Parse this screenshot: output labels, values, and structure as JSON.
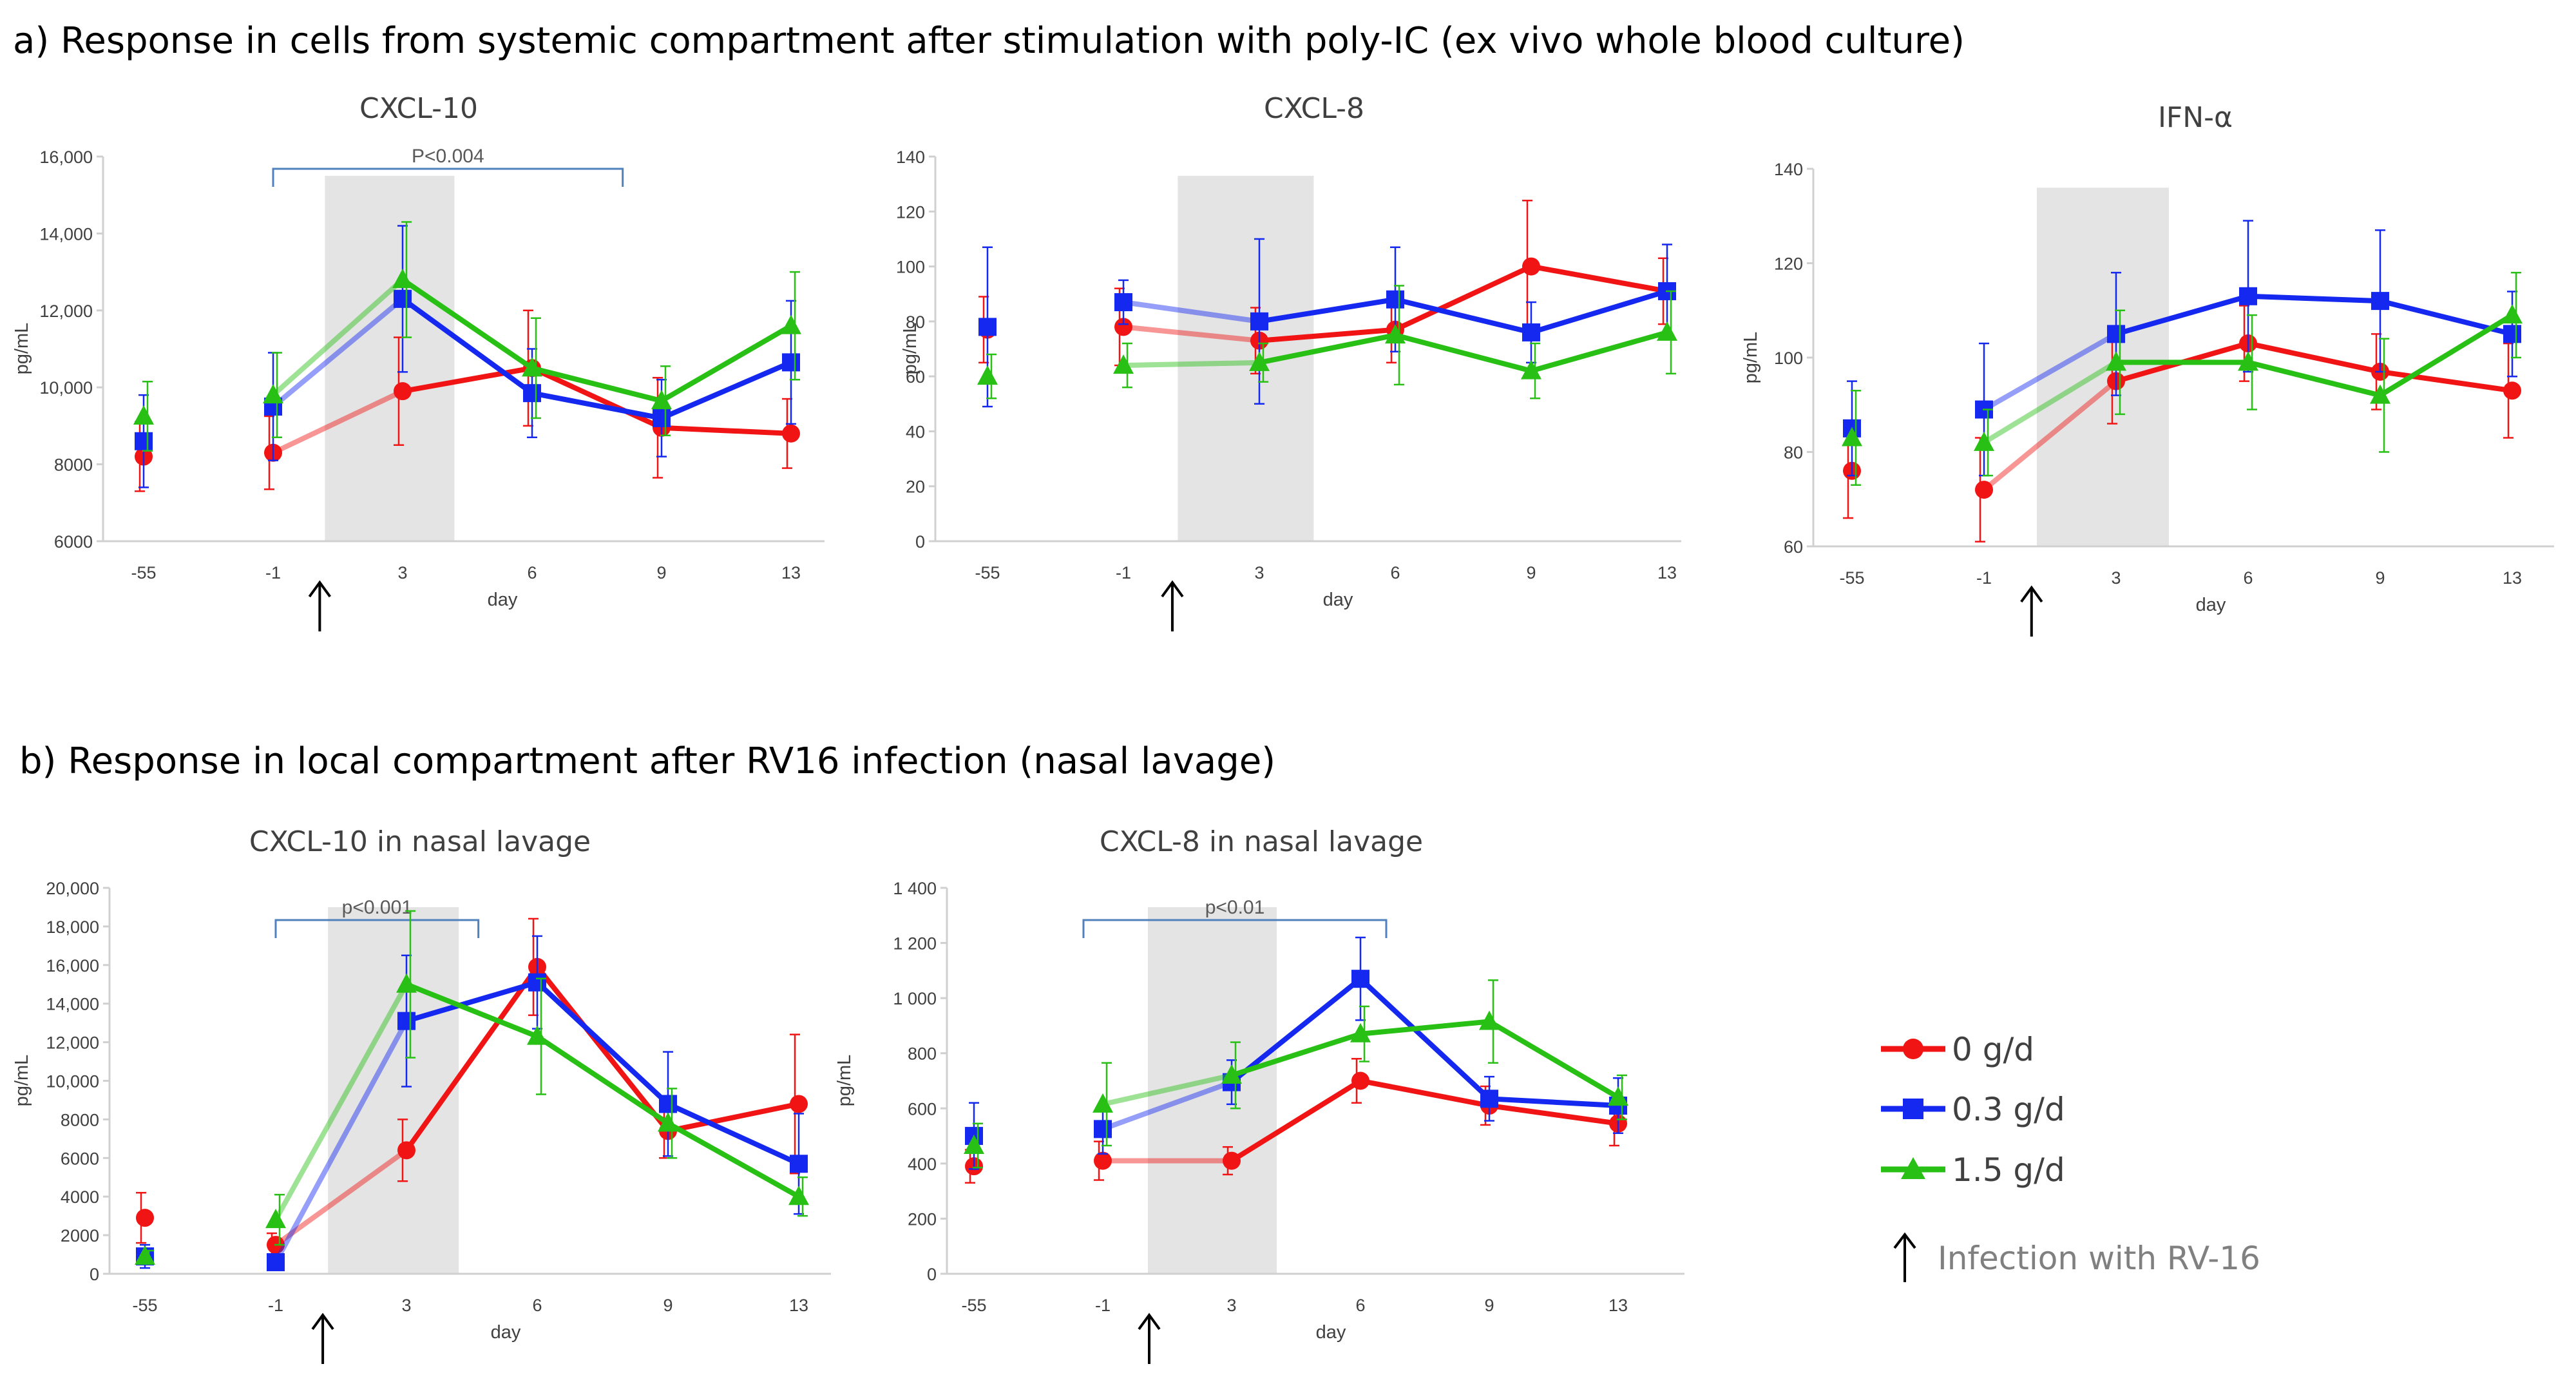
{
  "section_a_title": "a) Response in cells from systemic compartment after stimulation with poly-IC (ex vivo whole blood culture)",
  "section_b_title": "b) Response in local compartment after RV16 infection (nasal lavage)",
  "colors": {
    "s0": "#f01414",
    "s1": "#1428f0",
    "s2": "#28c014",
    "shade": "#e4e4e4",
    "bracket": "#4f81bd",
    "axis": "#d0d0d0",
    "arrow": "#000000"
  },
  "legend": {
    "items": [
      {
        "label": "0 g/d",
        "color": "#f01414",
        "marker": "circle"
      },
      {
        "label": "0.3 g/d",
        "color": "#1428f0",
        "marker": "square"
      },
      {
        "label": "1.5 g/d",
        "color": "#28c014",
        "marker": "triangle"
      }
    ],
    "infection_label": "Infection with RV-16"
  },
  "chart_data": [
    {
      "type": "line",
      "title": "CXCL-10",
      "xlabel": "day",
      "ylabel": "pg/mL",
      "categories": [
        "-55",
        "-1",
        "3",
        "6",
        "9",
        "13"
      ],
      "ylim": [
        6000,
        16000
      ],
      "yticks": [
        6000,
        8000,
        10000,
        12000,
        14000,
        16000
      ],
      "ytick_labels": [
        "6000",
        "8000",
        "10,000",
        "12,000",
        "14,000",
        "16,000"
      ],
      "shade": [
        1.4,
        2.4
      ],
      "arrow_at": 1.36,
      "pvalue": {
        "text": "P<0.004",
        "from": 1,
        "to": 3.7
      },
      "series": [
        {
          "name": "0 g/d",
          "values": [
            8200,
            8300,
            9900,
            10500,
            8950,
            8800
          ],
          "errors": [
            900,
            950,
            1400,
            1500,
            1300,
            900
          ]
        },
        {
          "name": "0.3 g/d",
          "values": [
            8600,
            9500,
            12300,
            9850,
            9200,
            10650
          ],
          "errors": [
            1200,
            1400,
            1900,
            1150,
            1000,
            1600
          ]
        },
        {
          "name": "1.5 g/d",
          "values": [
            9250,
            9800,
            12800,
            10500,
            9650,
            11600
          ],
          "errors": [
            900,
            1100,
            1500,
            1300,
            900,
            1400
          ]
        }
      ]
    },
    {
      "type": "line",
      "title": "CXCL-8",
      "xlabel": "day",
      "ylabel": "pg/mL",
      "categories": [
        "-55",
        "-1",
        "3",
        "6",
        "9",
        "13"
      ],
      "ylim": [
        0,
        140
      ],
      "yticks": [
        0,
        20,
        40,
        60,
        80,
        100,
        120,
        140
      ],
      "ytick_labels": [
        "0",
        "20",
        "40",
        "60",
        "80",
        "100",
        "120",
        "140"
      ],
      "shade": [
        1.4,
        2.4
      ],
      "arrow_at": 1.36,
      "series": [
        {
          "name": "0 g/d",
          "values": [
            77,
            78,
            73,
            77,
            100,
            91
          ],
          "errors": [
            12,
            14,
            12,
            12,
            24,
            12
          ]
        },
        {
          "name": "0.3 g/d",
          "values": [
            78,
            87,
            80,
            88,
            76,
            91
          ],
          "errors": [
            29,
            8,
            30,
            19,
            11,
            17
          ]
        },
        {
          "name": "1.5 g/d",
          "values": [
            60,
            64,
            65,
            75,
            62,
            76
          ],
          "errors": [
            8,
            8,
            7,
            18,
            10,
            15
          ]
        }
      ]
    },
    {
      "type": "line",
      "title": "IFN-α",
      "xlabel": "day",
      "ylabel": "pg/mL",
      "categories": [
        "-55",
        "-1",
        "3",
        "6",
        "9",
        "13"
      ],
      "ylim": [
        60,
        140
      ],
      "yticks": [
        60,
        80,
        100,
        120,
        140
      ],
      "ytick_labels": [
        "60",
        "80",
        "100",
        "120",
        "140"
      ],
      "shade": [
        1.4,
        2.4
      ],
      "arrow_at": 1.36,
      "series": [
        {
          "name": "0 g/d",
          "values": [
            76,
            72,
            95,
            103,
            97,
            93
          ],
          "errors": [
            10,
            11,
            9,
            8,
            8,
            10
          ]
        },
        {
          "name": "0.3 g/d",
          "values": [
            85,
            89,
            105,
            113,
            112,
            105
          ],
          "errors": [
            10,
            14,
            13,
            16,
            15,
            9
          ]
        },
        {
          "name": "1.5 g/d",
          "values": [
            83,
            82,
            99,
            99,
            92,
            109
          ],
          "errors": [
            10,
            7,
            11,
            10,
            12,
            9
          ]
        }
      ]
    },
    {
      "type": "line",
      "title": "CXCL-10 in nasal lavage",
      "xlabel": "day",
      "ylabel": "pg/mL",
      "categories": [
        "-55",
        "-1",
        "3",
        "6",
        "9",
        "13"
      ],
      "ylim": [
        0,
        20000
      ],
      "yticks": [
        0,
        2000,
        4000,
        6000,
        8000,
        10000,
        12000,
        14000,
        16000,
        18000,
        20000
      ],
      "ytick_labels": [
        "0",
        "2000",
        "4000",
        "6000",
        "8000",
        "10,000",
        "12,000",
        "14,000",
        "16,000",
        "18,000",
        "20,000"
      ],
      "shade": [
        1.4,
        2.4
      ],
      "arrow_at": 1.36,
      "pvalue": {
        "text": "p<0.001",
        "from": 1,
        "to": 2.55
      },
      "series": [
        {
          "name": "0 g/d",
          "values": [
            2900,
            1500,
            6400,
            15900,
            7400,
            8800
          ],
          "errors": [
            1300,
            600,
            1600,
            2500,
            1400,
            3600
          ]
        },
        {
          "name": "0.3 g/d",
          "values": [
            900,
            600,
            13100,
            15100,
            8800,
            5700
          ],
          "errors": [
            600,
            300,
            3400,
            2400,
            2700,
            2600
          ]
        },
        {
          "name": "1.5 g/d",
          "values": [
            900,
            2800,
            15000,
            12300,
            7800,
            4000
          ],
          "errors": [
            300,
            1300,
            3800,
            3000,
            1800,
            1000
          ]
        }
      ]
    },
    {
      "type": "line",
      "title": "CXCL-8 in nasal lavage",
      "xlabel": "day",
      "ylabel": "pg/mL",
      "categories": [
        "-55",
        "-1",
        "3",
        "6",
        "9",
        "13"
      ],
      "ylim": [
        0,
        1400
      ],
      "yticks": [
        0,
        200,
        400,
        600,
        800,
        1000,
        1200,
        1400
      ],
      "ytick_labels": [
        "0",
        "200",
        "400",
        "600",
        "800",
        "1 000",
        "1 200",
        "1 400"
      ],
      "shade": [
        1.35,
        2.35
      ],
      "arrow_at": 1.36,
      "pvalue": {
        "text": "p<0.01",
        "from": 0.85,
        "to": 3.2
      },
      "series": [
        {
          "name": "0 g/d",
          "values": [
            390,
            410,
            410,
            700,
            610,
            545
          ],
          "errors": [
            60,
            70,
            50,
            80,
            70,
            80
          ]
        },
        {
          "name": "0.3 g/d",
          "values": [
            500,
            525,
            695,
            1070,
            635,
            610
          ],
          "errors": [
            120,
            90,
            80,
            150,
            80,
            100
          ]
        },
        {
          "name": "1.5 g/d",
          "values": [
            465,
            615,
            720,
            870,
            915,
            640
          ],
          "errors": [
            80,
            150,
            120,
            100,
            150,
            80
          ]
        }
      ]
    }
  ]
}
